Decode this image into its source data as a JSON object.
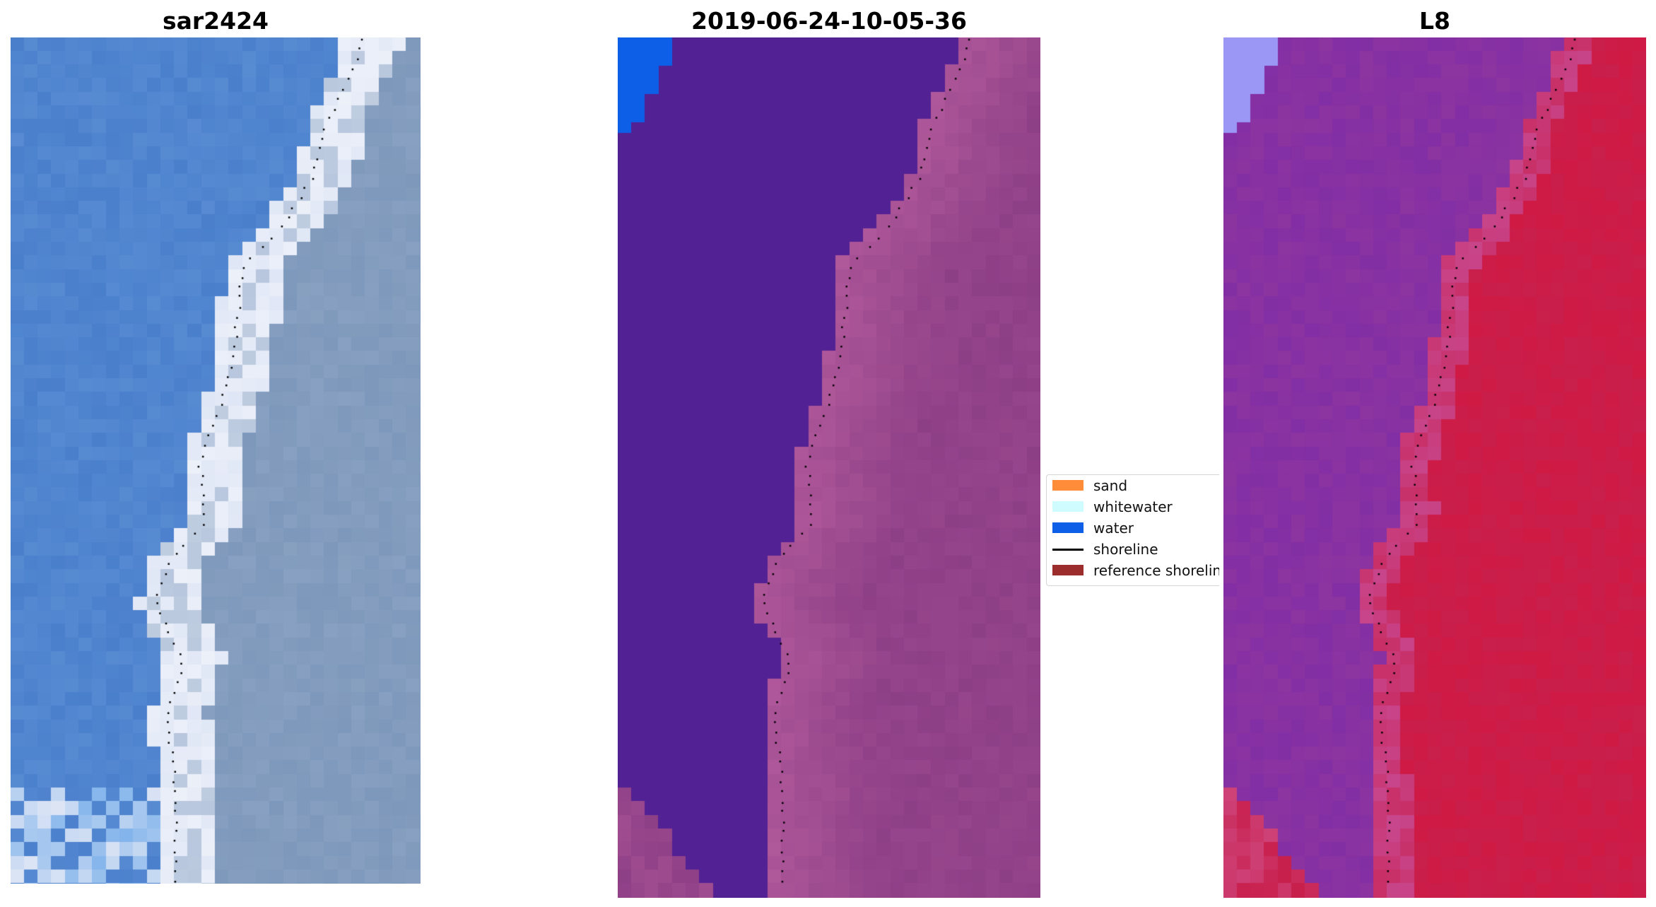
{
  "panels": [
    {
      "title": "sar2424",
      "kind": "rgb"
    },
    {
      "title": "2019-06-24-10-05-36",
      "kind": "classified"
    },
    {
      "title": "L8",
      "kind": "index"
    }
  ],
  "legend": {
    "items": [
      {
        "label": "sand",
        "color": "#ff8c38",
        "type": "patch"
      },
      {
        "label": "whitewater",
        "color": "#cffcff",
        "type": "patch"
      },
      {
        "label": "water",
        "color": "#0d5fe8",
        "type": "patch"
      },
      {
        "label": "shoreline",
        "color": "#000000",
        "type": "line"
      },
      {
        "label": "reference shoreline",
        "color": "#9b2d2d",
        "type": "patch"
      }
    ]
  },
  "colors": {
    "ocean_rgb": "#4a7fcc",
    "surf_rgb": "#dfe6f5",
    "land_rgb": "#7d98bb",
    "water_class": "#522194",
    "land_class": "#8d3f86",
    "border_class": "#c06494",
    "water_index": "#8c34a0",
    "land_index": "#c81f4c",
    "nodata_index": "#9a97f5"
  }
}
